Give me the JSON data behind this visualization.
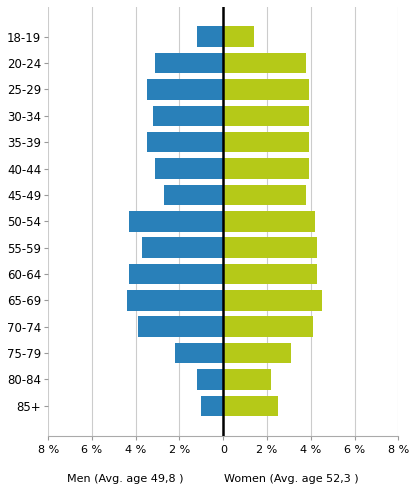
{
  "age_groups": [
    "18-19",
    "20-24",
    "25-29",
    "30-34",
    "35-39",
    "40-44",
    "45-49",
    "50-54",
    "55-59",
    "60-64",
    "65-69",
    "70-74",
    "75-79",
    "80-84",
    "85+"
  ],
  "men": [
    1.2,
    3.1,
    3.5,
    3.2,
    3.5,
    3.1,
    2.7,
    4.3,
    3.7,
    4.3,
    4.4,
    3.9,
    2.2,
    1.2,
    1.0
  ],
  "women": [
    1.4,
    3.8,
    3.9,
    3.9,
    3.9,
    3.9,
    3.8,
    4.2,
    4.3,
    4.3,
    4.5,
    4.1,
    3.1,
    2.2,
    2.5
  ],
  "men_color": "#2980b9",
  "women_color": "#b5c918",
  "xlim": 8,
  "men_label": "Men (Avg. age 49,8 )",
  "women_label": "Women (Avg. age 52,3 )",
  "background_color": "#ffffff",
  "grid_color": "#cccccc",
  "bar_height": 0.78
}
